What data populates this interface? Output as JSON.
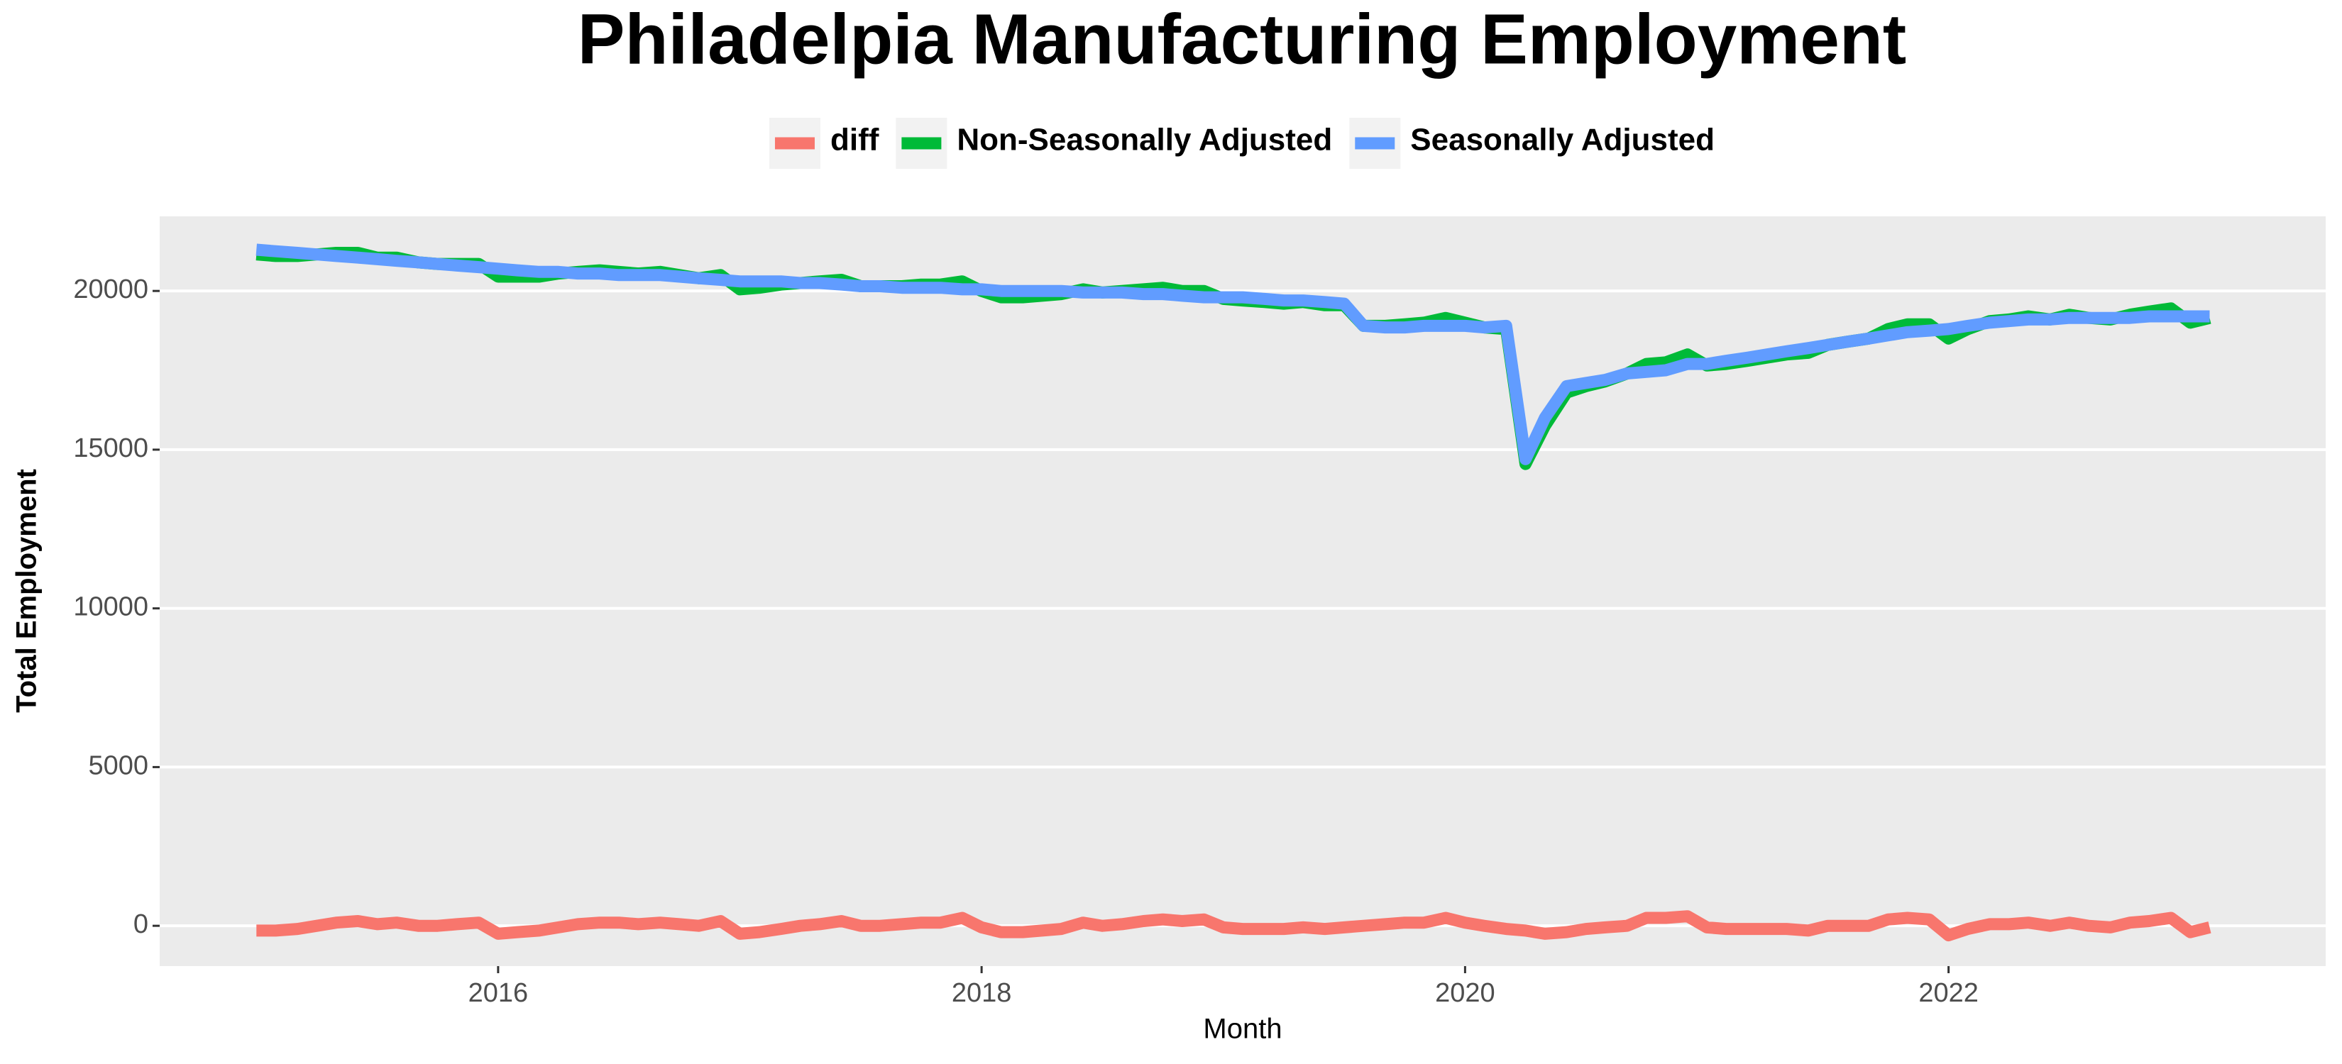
{
  "chart_data": {
    "type": "line",
    "title": "Philadelpia Manufacturing Employment",
    "x_label": "Month",
    "y_label": "Total Employment",
    "xlim": [
      2014.6,
      2023.56
    ],
    "ylim": [
      -1270,
      22350
    ],
    "xticks": [
      2016,
      2018,
      2020,
      2022
    ],
    "yticks": [
      0,
      5000,
      10000,
      15000,
      20000
    ],
    "grid": "y",
    "legend": "top",
    "x": [
      2015.0,
      2015.08,
      2015.17,
      2015.25,
      2015.33,
      2015.42,
      2015.5,
      2015.58,
      2015.67,
      2015.75,
      2015.83,
      2015.92,
      2016.0,
      2016.08,
      2016.17,
      2016.25,
      2016.33,
      2016.42,
      2016.5,
      2016.58,
      2016.67,
      2016.75,
      2016.83,
      2016.92,
      2017.0,
      2017.08,
      2017.17,
      2017.25,
      2017.33,
      2017.42,
      2017.5,
      2017.58,
      2017.67,
      2017.75,
      2017.83,
      2017.92,
      2018.0,
      2018.08,
      2018.17,
      2018.25,
      2018.33,
      2018.42,
      2018.5,
      2018.58,
      2018.67,
      2018.75,
      2018.83,
      2018.92,
      2019.0,
      2019.08,
      2019.17,
      2019.25,
      2019.33,
      2019.42,
      2019.5,
      2019.58,
      2019.67,
      2019.75,
      2019.83,
      2019.92,
      2020.0,
      2020.08,
      2020.17,
      2020.25,
      2020.33,
      2020.42,
      2020.5,
      2020.58,
      2020.67,
      2020.75,
      2020.83,
      2020.92,
      2021.0,
      2021.08,
      2021.17,
      2021.25,
      2021.33,
      2021.42,
      2021.5,
      2021.58,
      2021.67,
      2021.75,
      2021.83,
      2021.92,
      2022.0,
      2022.08,
      2022.17,
      2022.25,
      2022.33,
      2022.42,
      2022.5,
      2022.58,
      2022.67,
      2022.75,
      2022.83,
      2022.92,
      2023.0,
      2023.08
    ],
    "series": [
      {
        "name": "diff",
        "color": "#F8766D",
        "values": [
          -150,
          -150,
          -100,
          0,
          100,
          150,
          50,
          100,
          0,
          0,
          50,
          100,
          -250,
          -200,
          -150,
          -50,
          50,
          100,
          100,
          50,
          100,
          50,
          0,
          150,
          -250,
          -200,
          -100,
          0,
          50,
          150,
          0,
          0,
          50,
          100,
          100,
          250,
          -50,
          -200,
          -200,
          -150,
          -100,
          100,
          0,
          50,
          150,
          200,
          150,
          200,
          -50,
          -100,
          -100,
          -100,
          -50,
          -100,
          -50,
          0,
          50,
          100,
          100,
          250,
          100,
          0,
          -100,
          -150,
          -250,
          -200,
          -100,
          -50,
          0,
          250,
          250,
          300,
          -50,
          -100,
          -100,
          -100,
          -100,
          -150,
          0,
          0,
          0,
          200,
          250,
          200,
          -300,
          -100,
          50,
          50,
          100,
          0,
          100,
          0,
          -50,
          100,
          150,
          250,
          -200,
          -50
        ]
      },
      {
        "name": "Non-Seasonally Adjusted",
        "color": "#00BA38",
        "values": [
          21150,
          21100,
          21100,
          21150,
          21200,
          21200,
          21050,
          21050,
          20900,
          20850,
          20850,
          20850,
          20450,
          20450,
          20450,
          20550,
          20600,
          20650,
          20600,
          20550,
          20600,
          20500,
          20400,
          20500,
          20050,
          20100,
          20200,
          20250,
          20300,
          20350,
          20150,
          20150,
          20150,
          20200,
          20200,
          20300,
          20000,
          19800,
          19800,
          19850,
          19900,
          20050,
          19950,
          20000,
          20050,
          20100,
          20000,
          20000,
          19750,
          19700,
          19650,
          19600,
          19650,
          19550,
          19550,
          18900,
          18900,
          18950,
          19000,
          19150,
          19000,
          18850,
          18800,
          14550,
          15750,
          16800,
          17000,
          17150,
          17400,
          17700,
          17750,
          18000,
          17650,
          17700,
          17800,
          17900,
          18000,
          18050,
          18300,
          18400,
          18500,
          18800,
          18950,
          18950,
          18500,
          18800,
          19050,
          19100,
          19200,
          19100,
          19250,
          19150,
          19100,
          19250,
          19350,
          19450,
          19000,
          19150
        ]
      },
      {
        "name": "Seasonally Adjusted",
        "color": "#619CFF",
        "values": [
          21300,
          21250,
          21200,
          21150,
          21100,
          21050,
          21000,
          20950,
          20900,
          20850,
          20800,
          20750,
          20700,
          20650,
          20600,
          20600,
          20550,
          20550,
          20500,
          20500,
          20500,
          20450,
          20400,
          20350,
          20300,
          20300,
          20300,
          20250,
          20250,
          20200,
          20150,
          20150,
          20100,
          20100,
          20100,
          20050,
          20050,
          20000,
          20000,
          20000,
          20000,
          19950,
          19950,
          19950,
          19900,
          19900,
          19850,
          19800,
          19800,
          19800,
          19750,
          19700,
          19700,
          19650,
          19600,
          18900,
          18850,
          18850,
          18900,
          18900,
          18900,
          18850,
          18900,
          14700,
          16000,
          17000,
          17100,
          17200,
          17400,
          17450,
          17500,
          17700,
          17700,
          17800,
          17900,
          18000,
          18100,
          18200,
          18300,
          18400,
          18500,
          18600,
          18700,
          18750,
          18800,
          18900,
          19000,
          19050,
          19100,
          19100,
          19150,
          19150,
          19150,
          19150,
          19200,
          19200,
          19200,
          19200
        ]
      }
    ]
  }
}
